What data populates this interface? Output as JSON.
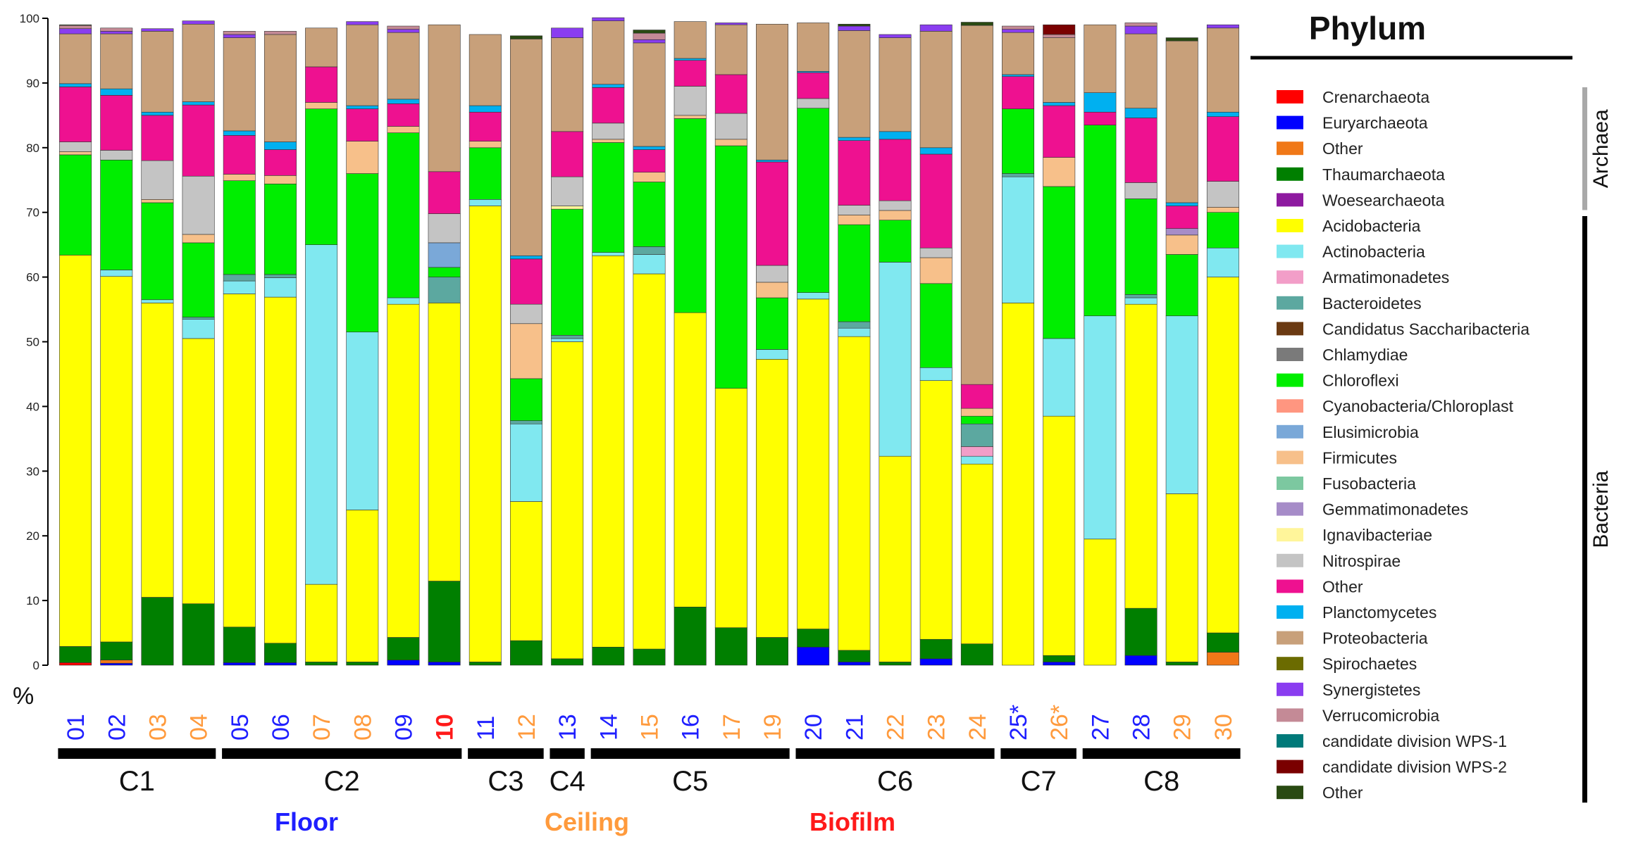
{
  "chart_data": {
    "type": "bar",
    "stacked": true,
    "title": "Phylum",
    "ylabel": "%",
    "ylim": [
      0,
      100
    ],
    "yticks": [
      0,
      10,
      20,
      30,
      40,
      50,
      60,
      70,
      80,
      90,
      100
    ],
    "categories": [
      "01",
      "02",
      "03",
      "04",
      "05",
      "06",
      "07",
      "08",
      "09",
      "10",
      "11",
      "12",
      "13",
      "14",
      "15",
      "16",
      "17",
      "19",
      "20",
      "21",
      "22",
      "23",
      "24",
      "25*",
      "26*",
      "27",
      "28",
      "29",
      "30"
    ],
    "category_groups": [
      "floor",
      "floor",
      "ceiling",
      "ceiling",
      "floor",
      "floor",
      "ceiling",
      "ceiling",
      "floor",
      "biofilm",
      "floor",
      "ceiling",
      "floor",
      "floor",
      "ceiling",
      "floor",
      "ceiling",
      "ceiling",
      "floor",
      "floor",
      "ceiling",
      "ceiling",
      "ceiling",
      "floor",
      "ceiling",
      "floor",
      "floor",
      "ceiling",
      "ceiling"
    ],
    "bold_categories": [
      "10"
    ],
    "clusters": [
      {
        "label": "C1",
        "first": 0,
        "last": 3
      },
      {
        "label": "C2",
        "first": 4,
        "last": 9
      },
      {
        "label": "C3",
        "first": 10,
        "last": 11
      },
      {
        "label": "C4",
        "first": 12,
        "last": 12
      },
      {
        "label": "C5",
        "first": 13,
        "last": 17
      },
      {
        "label": "C6",
        "first": 18,
        "last": 22
      },
      {
        "label": "C7",
        "first": 23,
        "last": 24
      },
      {
        "label": "C8",
        "first": 25,
        "last": 28
      }
    ],
    "sample_types": [
      {
        "key": "floor",
        "label": "Floor",
        "color": "#1f1fff"
      },
      {
        "key": "ceiling",
        "label": "Ceiling",
        "color": "#ff9a3c"
      },
      {
        "key": "biofilm",
        "label": "Biofilm",
        "color": "#ff1a1a"
      }
    ],
    "series": [
      {
        "name": "Crenarchaeota",
        "color": "#ff0000",
        "values": [
          0.4,
          0,
          0,
          0,
          0,
          0,
          0,
          0,
          0,
          0,
          0,
          0,
          0,
          0,
          0,
          0,
          0,
          0,
          0,
          0,
          0,
          0,
          0,
          0,
          0,
          0,
          0,
          0,
          0
        ]
      },
      {
        "name": "Euryarchaeota",
        "color": "#0000ff",
        "values": [
          0,
          0.3,
          0,
          0,
          0.4,
          0.4,
          0,
          0,
          0.8,
          0.5,
          0,
          0,
          0,
          0,
          0,
          0,
          0,
          0,
          2.8,
          0.5,
          0,
          1.0,
          0,
          0,
          0.5,
          0,
          1.5,
          0,
          0
        ]
      },
      {
        "name": "Other",
        "color": "#f07818",
        "values": [
          0,
          0.5,
          0,
          0,
          0,
          0,
          0,
          0,
          0,
          0,
          0,
          0,
          0,
          0,
          0,
          0,
          0,
          0,
          0,
          0,
          0,
          0,
          0,
          0,
          0,
          0,
          0,
          0,
          2.0
        ]
      },
      {
        "name": "Thaumarchaeota",
        "color": "#007f00",
        "values": [
          2.5,
          2.8,
          10.5,
          9.5,
          5.5,
          3.0,
          0.5,
          0.5,
          3.5,
          12.5,
          0.5,
          3.8,
          1.0,
          2.8,
          2.5,
          9.0,
          5.8,
          4.3,
          2.8,
          1.8,
          0.5,
          3.0,
          3.3,
          0,
          1.0,
          0,
          7.3,
          0.5,
          3.0
        ]
      },
      {
        "name": "Woesearchaeota",
        "color": "#8e1aa0",
        "values": [
          0,
          0,
          0,
          0,
          0,
          0,
          0,
          0,
          0,
          0,
          0,
          0,
          0,
          0,
          0,
          0,
          0,
          0,
          0,
          0,
          0,
          0,
          0,
          0,
          0,
          0,
          0,
          0,
          0
        ]
      },
      {
        "name": "Acidobacteria",
        "color": "#ffff00",
        "values": [
          60.5,
          56.5,
          45.5,
          41.0,
          51.5,
          53.5,
          12.0,
          23.5,
          51.5,
          43.0,
          70.5,
          21.5,
          49.0,
          60.5,
          58.0,
          45.5,
          37.0,
          43.0,
          51.0,
          48.5,
          31.8,
          40.0,
          27.8,
          56.0,
          37.0,
          19.5,
          47.0,
          26.0,
          55.0
        ]
      },
      {
        "name": "Actinobacteria",
        "color": "#80e8f0",
        "values": [
          0,
          1.0,
          0.5,
          3.0,
          2.0,
          3.0,
          52.5,
          27.5,
          1.0,
          0,
          1.0,
          12.0,
          0.5,
          0.5,
          3.0,
          0,
          0,
          1.5,
          1.0,
          1.3,
          30.0,
          2.0,
          1.2,
          19.5,
          12.0,
          34.5,
          1.0,
          27.5,
          4.5
        ]
      },
      {
        "name": "Armatimonadetes",
        "color": "#f29ec8",
        "values": [
          0,
          0,
          0,
          0,
          0,
          0,
          0,
          0,
          0,
          0,
          0,
          0,
          0,
          0,
          0,
          0,
          0,
          0,
          0,
          0,
          0,
          0,
          1.5,
          0,
          0,
          0,
          0,
          0,
          0
        ]
      },
      {
        "name": "Bacteroidetes",
        "color": "#5ca8a0",
        "values": [
          0,
          0,
          0,
          0.3,
          1.0,
          0.5,
          0,
          0,
          0,
          4.0,
          0,
          0.5,
          0.5,
          0,
          1.2,
          0,
          0,
          0,
          0,
          1.0,
          0,
          0,
          3.5,
          0.5,
          0,
          0,
          0.5,
          0,
          0
        ]
      },
      {
        "name": "Candidatus Saccharibacteria",
        "color": "#6b3a12",
        "values": [
          0,
          0,
          0,
          0,
          0,
          0,
          0,
          0,
          0,
          0,
          0,
          0,
          0,
          0,
          0,
          0,
          0,
          0,
          0,
          0,
          0,
          0,
          0,
          0,
          0,
          0,
          0,
          0,
          0
        ]
      },
      {
        "name": "Chlamydiae",
        "color": "#7a7a7a",
        "values": [
          0,
          0,
          0,
          0,
          0,
          0,
          0,
          0,
          0,
          0,
          0,
          0,
          0,
          0,
          0,
          0,
          0,
          0,
          0,
          0,
          0,
          0,
          0,
          0,
          0,
          0,
          0,
          0,
          0
        ]
      },
      {
        "name": "Chloroflexi",
        "color": "#00ee00",
        "values": [
          15.5,
          17.0,
          15.0,
          11.5,
          14.5,
          14.0,
          21.0,
          24.5,
          25.5,
          1.5,
          8.0,
          6.5,
          19.5,
          17.0,
          10.0,
          30.0,
          37.5,
          8.0,
          28.5,
          15.0,
          6.5,
          13.0,
          1.2,
          10.0,
          23.5,
          29.5,
          14.8,
          9.5,
          5.5
        ]
      },
      {
        "name": "Cyanobacteria/Chloroplast",
        "color": "#ff9680",
        "values": [
          0,
          0,
          0,
          0,
          0,
          0,
          0,
          0,
          0,
          0,
          0,
          0,
          0,
          0,
          0,
          0,
          0,
          0,
          0,
          0,
          0,
          0,
          0,
          0,
          0,
          0,
          0,
          0,
          0
        ]
      },
      {
        "name": "Elusimicrobia",
        "color": "#7aa8d8",
        "values": [
          0,
          0,
          0,
          0,
          0,
          0,
          0,
          0,
          0,
          3.8,
          0,
          0,
          0,
          0,
          0,
          0,
          0,
          0,
          0,
          0,
          0,
          0,
          0,
          0,
          0,
          0,
          0,
          0,
          0
        ]
      },
      {
        "name": "Firmicutes",
        "color": "#f7c08a",
        "values": [
          0.5,
          0,
          0.5,
          1.3,
          1.0,
          1.3,
          1.0,
          5.0,
          1.0,
          0,
          1.0,
          8.5,
          0,
          0.5,
          1.5,
          0.5,
          1.0,
          2.4,
          0,
          1.5,
          1.5,
          4.0,
          1.2,
          0,
          4.5,
          0,
          0,
          3.0,
          0.8
        ]
      },
      {
        "name": "Fusobacteria",
        "color": "#7cc8a0",
        "values": [
          0,
          0,
          0,
          0,
          0,
          0,
          0,
          0,
          0,
          0,
          0,
          0,
          0,
          0,
          0,
          0,
          0,
          0,
          0,
          0,
          0,
          0,
          0,
          0,
          0,
          0,
          0,
          0,
          0
        ]
      },
      {
        "name": "Gemmatimonadetes",
        "color": "#a68cc8",
        "values": [
          0,
          0,
          0,
          0,
          0,
          0,
          0,
          0,
          0,
          0,
          0,
          0,
          0,
          0,
          0,
          0,
          0,
          0,
          0,
          0,
          0,
          0,
          0,
          0,
          0,
          0,
          0,
          1.0,
          0
        ]
      },
      {
        "name": "Ignavibacteriae",
        "color": "#fff59a",
        "values": [
          0,
          0,
          0,
          0,
          0,
          0,
          0,
          0,
          0,
          0,
          0,
          0,
          0.5,
          0,
          0,
          0,
          0,
          0,
          0,
          0,
          0,
          0,
          0,
          0,
          0,
          0,
          0,
          0,
          0
        ]
      },
      {
        "name": "Nitrospirae",
        "color": "#c4c4c4",
        "values": [
          1.5,
          1.5,
          6.0,
          9.0,
          0,
          0,
          0,
          0,
          0,
          4.5,
          0,
          3.0,
          4.5,
          2.5,
          0,
          4.5,
          4.0,
          2.6,
          1.5,
          1.5,
          1.5,
          1.5,
          0,
          0,
          0,
          0,
          2.5,
          0,
          4.0
        ]
      },
      {
        "name": "Other",
        "color": "#ee1190",
        "values": [
          8.5,
          8.5,
          7.0,
          11.0,
          6.0,
          4.0,
          5.5,
          5.0,
          3.5,
          6.5,
          4.5,
          7.0,
          7.0,
          5.5,
          3.5,
          4.0,
          6.0,
          16.0,
          4.0,
          10.0,
          9.5,
          14.5,
          3.7,
          5.0,
          8.0,
          2.0,
          10.0,
          3.5,
          10.0
        ]
      },
      {
        "name": "Planctomycetes",
        "color": "#00b0f0",
        "values": [
          0.5,
          1.0,
          0.5,
          0.5,
          0.7,
          1.2,
          0,
          0.5,
          0.7,
          0,
          1.0,
          0.5,
          0,
          0.5,
          0.5,
          0.3,
          0,
          0.3,
          0.2,
          0.5,
          1.2,
          1.0,
          0,
          0.3,
          0.5,
          3.0,
          1.5,
          0.5,
          0.7
        ]
      },
      {
        "name": "Proteobacteria",
        "color": "#c8a07a",
        "values": [
          7.7,
          8.5,
          12.5,
          12.0,
          14.4,
          16.6,
          6.0,
          12.5,
          10.3,
          22.7,
          11.0,
          33.5,
          14.5,
          9.8,
          16.0,
          5.7,
          7.7,
          21.0,
          7.5,
          16.5,
          14.5,
          18.0,
          55.5,
          6.5,
          10.0,
          10.5,
          11.5,
          25.0,
          13.0
        ]
      },
      {
        "name": "Spirochaetes",
        "color": "#6b6b00",
        "values": [
          0,
          0,
          0,
          0,
          0,
          0,
          0,
          0,
          0,
          0,
          0,
          0,
          0,
          0,
          0,
          0,
          0,
          0,
          0,
          0,
          0,
          0,
          0,
          0,
          0,
          0,
          0,
          0,
          0
        ]
      },
      {
        "name": "Synergistetes",
        "color": "#8a3df0",
        "values": [
          0.8,
          0.4,
          0.4,
          0.5,
          0.5,
          0,
          0,
          0.5,
          0.5,
          0,
          0,
          0,
          1.5,
          0.5,
          0.5,
          0,
          0.3,
          0,
          0,
          0.7,
          0.5,
          1.0,
          0,
          0.5,
          0,
          0,
          1.2,
          0,
          0.5
        ]
      },
      {
        "name": "Verrucomicrobia",
        "color": "#c48a96",
        "values": [
          0.5,
          0.5,
          0,
          0,
          0.5,
          0.5,
          0,
          0,
          0.5,
          0,
          0,
          0,
          0,
          0,
          1.0,
          0,
          0,
          0,
          0,
          0,
          0,
          0,
          0,
          0.5,
          0.5,
          0,
          0.5,
          0,
          0
        ]
      },
      {
        "name": "candidate division WPS-1",
        "color": "#007a7a",
        "values": [
          0,
          0,
          0,
          0,
          0,
          0,
          0,
          0,
          0,
          0,
          0,
          0,
          0,
          0,
          0,
          0,
          0,
          0,
          0,
          0,
          0,
          0,
          0,
          0,
          0,
          0,
          0,
          0,
          0
        ]
      },
      {
        "name": "candidate division WPS-2",
        "color": "#7a0000",
        "values": [
          0,
          0,
          0,
          0,
          0,
          0,
          0,
          0,
          0,
          0,
          0,
          0,
          0,
          0,
          0,
          0,
          0,
          0,
          0,
          0,
          0,
          0,
          0,
          0,
          1.5,
          0,
          0,
          0,
          0
        ]
      },
      {
        "name": "Other",
        "color": "#294a12",
        "values": [
          0.1,
          0,
          0,
          0,
          0,
          0,
          0,
          0,
          0,
          0,
          0,
          0.5,
          0,
          0,
          0.5,
          0,
          0,
          0,
          0,
          0.3,
          0,
          0,
          0.5,
          0,
          0,
          0,
          0,
          0.5,
          0
        ]
      }
    ],
    "legend": {
      "title": "Phylum",
      "position": "right",
      "domains": [
        {
          "label": "Archaea",
          "first": 0,
          "last": 4
        },
        {
          "label": "Bacteria",
          "first": 5,
          "last": 27
        }
      ]
    }
  }
}
